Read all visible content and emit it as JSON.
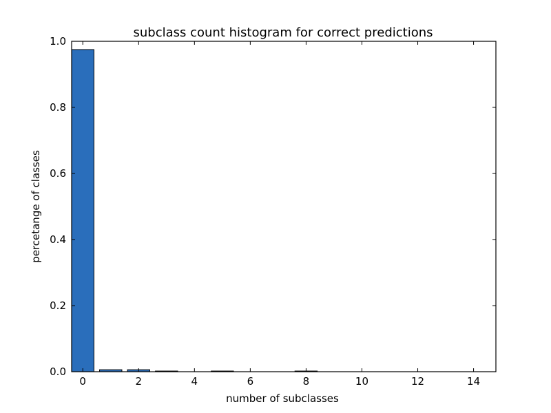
{
  "chart_data": {
    "type": "bar",
    "title": "subclass count histogram for correct predictions",
    "xlabel": "number of subclasses",
    "ylabel": "percetange of classes",
    "x": [
      0,
      1,
      2,
      3,
      4,
      5,
      6,
      7,
      8,
      9,
      10,
      11,
      12,
      13,
      14
    ],
    "values": [
      0.975,
      0.006,
      0.006,
      0.002,
      0.0,
      0.002,
      0.0,
      0.0,
      0.002,
      0.0,
      0.0,
      0.0,
      0.0,
      0.0,
      0.0
    ],
    "xlim": [
      -0.4,
      14.8
    ],
    "ylim": [
      0,
      1.0
    ],
    "xticks": [
      0,
      2,
      4,
      6,
      8,
      10,
      12,
      14
    ],
    "xtick_labels": [
      "0",
      "2",
      "4",
      "6",
      "8",
      "10",
      "12",
      "14"
    ],
    "yticks": [
      0.0,
      0.2,
      0.4,
      0.6,
      0.8,
      1.0
    ],
    "ytick_labels": [
      "0.0",
      "0.2",
      "0.4",
      "0.6",
      "0.8",
      "1.0"
    ],
    "bar_color": "#2a6ebb",
    "edge_color": "#000000",
    "grid": false,
    "legend": "none"
  }
}
